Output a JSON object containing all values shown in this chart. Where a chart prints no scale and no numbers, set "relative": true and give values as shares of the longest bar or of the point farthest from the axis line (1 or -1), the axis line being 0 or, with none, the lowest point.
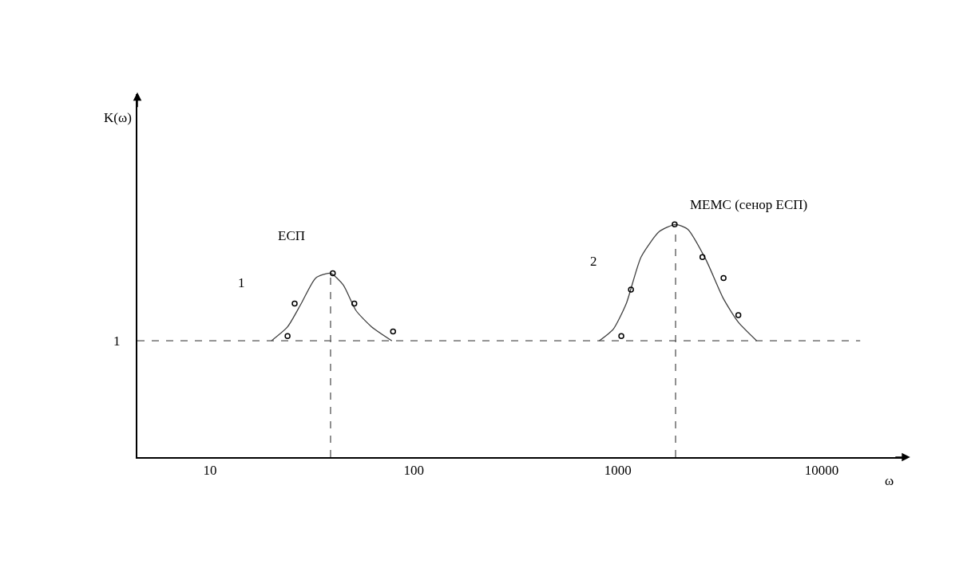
{
  "chart_data": {
    "type": "line",
    "relative": true,
    "log": "x",
    "xlabel": "ω",
    "xlim": [
      4.4,
      26000
    ],
    "xticks": [
      10,
      100,
      1000,
      10000
    ],
    "grid": false,
    "marker": "none",
    "line_style": "solid",
    "series": [
      {
        "color": "#404040",
        "x": [
          20,
          24,
          28,
          33,
          39,
          45,
          52,
          62,
          78
        ],
        "values": [
          0.5,
          0.56,
          0.66,
          0.77,
          0.79,
          0.74,
          0.63,
          0.56,
          0.5
        ]
      },
      {
        "color": "#404040",
        "x": [
          810,
          950,
          1100,
          1300,
          1600,
          1920,
          2200,
          2700,
          3300,
          3900,
          4800
        ],
        "values": [
          0.5,
          0.55,
          0.66,
          0.86,
          0.97,
          1.0,
          0.98,
          0.85,
          0.68,
          0.58,
          0.5
        ]
      },
      {
        "type": "scatter",
        "marker": "circle",
        "color": "#000000",
        "x": [
          24,
          26,
          40,
          51,
          79
        ],
        "values": [
          0.52,
          0.66,
          0.79,
          0.66,
          0.54
        ]
      },
      {
        "type": "scatter",
        "marker": "circle",
        "color": "#000000",
        "x": [
          1040,
          1160,
          1900,
          2600,
          3300,
          3900
        ],
        "values": [
          0.52,
          0.72,
          1.0,
          0.86,
          0.77,
          0.61
        ]
      }
    ],
    "ref_lines": [
      {
        "axis": "y",
        "value": 0.5,
        "label": "1",
        "line_style": "dashed",
        "color": "#555555"
      },
      {
        "axis": "x",
        "value": 39,
        "label": null,
        "line_style": "dashed",
        "color": "#555555"
      },
      {
        "axis": "x",
        "value": 1920,
        "label": null,
        "line_style": "dashed",
        "color": "#555555"
      }
    ],
    "annotations": [
      "K(ω)",
      "1",
      "2",
      "ЕСП",
      "МЕМС (сенор ЕСП)"
    ]
  }
}
